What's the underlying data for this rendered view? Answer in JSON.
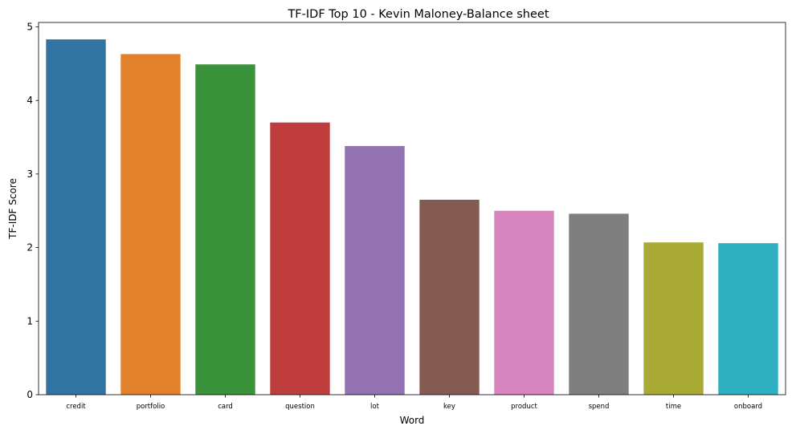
{
  "chart_data": {
    "type": "bar",
    "title": "TF-IDF Top 10 - Kevin Maloney-Balance sheet",
    "xlabel": "Word",
    "ylabel": "TF-IDF Score",
    "categories": [
      "credit",
      "portfolio",
      "card",
      "question",
      "lot",
      "key",
      "product",
      "spend",
      "time",
      "onboard"
    ],
    "values": [
      4.83,
      4.63,
      4.49,
      3.7,
      3.38,
      2.65,
      2.5,
      2.46,
      2.07,
      2.06
    ],
    "colors": [
      "#3274a1",
      "#e1812c",
      "#3a923a",
      "#c03d3e",
      "#9372b2",
      "#845b53",
      "#d684bd",
      "#7f7f7f",
      "#a9aa35",
      "#2fb0c0"
    ],
    "ylim": [
      0,
      5.06
    ],
    "yticks": [
      0,
      1,
      2,
      3,
      4,
      5
    ],
    "grid": false,
    "legend": "none"
  }
}
